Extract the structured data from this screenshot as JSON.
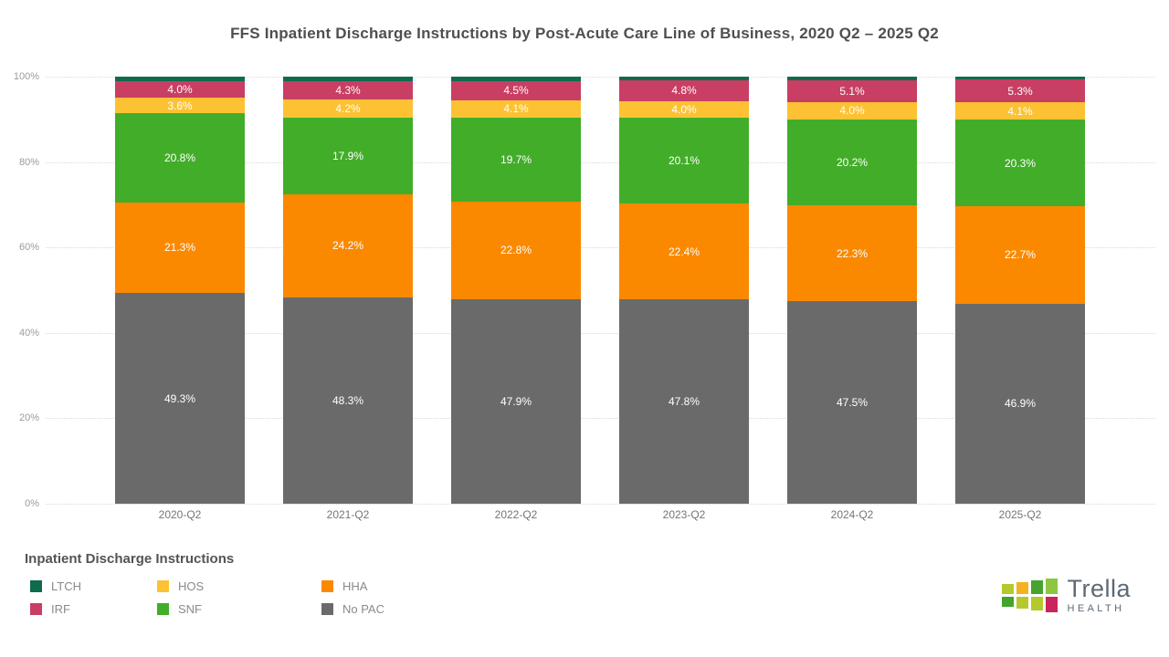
{
  "title": "FFS Inpatient Discharge Instructions by Post-Acute Care Line of Business, 2020 Q2 – 2025 Q2",
  "chart_data": {
    "type": "bar",
    "stacked": true,
    "orientation": "vertical",
    "title": "FFS Inpatient Discharge Instructions by Post-Acute Care Line of Business, 2020 Q2 – 2025 Q2",
    "categories": [
      "2020-Q2",
      "2021-Q2",
      "2022-Q2",
      "2023-Q2",
      "2024-Q2",
      "2025-Q2"
    ],
    "series": [
      {
        "name": "No PAC",
        "color": "#6a6a6a",
        "values": [
          49.3,
          48.3,
          47.9,
          47.8,
          47.5,
          46.9
        ],
        "data_labels": true
      },
      {
        "name": "HHA",
        "color": "#fb8900",
        "values": [
          21.3,
          24.2,
          22.8,
          22.4,
          22.3,
          22.7
        ],
        "data_labels": true
      },
      {
        "name": "SNF",
        "color": "#42ad29",
        "values": [
          20.8,
          17.9,
          19.7,
          20.1,
          20.2,
          20.3
        ],
        "data_labels": true
      },
      {
        "name": "HOS",
        "color": "#fcc233",
        "values": [
          3.6,
          4.2,
          4.1,
          4.0,
          4.0,
          4.1
        ],
        "data_labels": true
      },
      {
        "name": "IRF",
        "color": "#c83f63",
        "values": [
          4.0,
          4.3,
          4.5,
          4.8,
          5.1,
          5.3
        ],
        "data_labels": true
      },
      {
        "name": "LTCH",
        "color": "#0e6b4e",
        "values": [
          1.0,
          1.1,
          1.0,
          0.9,
          0.9,
          0.7
        ],
        "data_labels": false
      }
    ],
    "ylim": [
      0,
      100
    ],
    "y_ticks": [
      "0%",
      "20%",
      "40%",
      "60%",
      "80%",
      "100%"
    ],
    "grid": "dotted horizontal",
    "legend_position": "bottom-left",
    "value_suffix": "%"
  },
  "legend": {
    "title": "Inpatient Discharge Instructions",
    "items": [
      {
        "label": "LTCH",
        "color": "#0e6b4e"
      },
      {
        "label": "IRF",
        "color": "#c83f63"
      },
      {
        "label": "HOS",
        "color": "#fcc233"
      },
      {
        "label": "SNF",
        "color": "#42ad29"
      },
      {
        "label": "HHA",
        "color": "#fb8900"
      },
      {
        "label": "No PAC",
        "color": "#6a6a6a"
      }
    ]
  },
  "logo": {
    "brand": "Trella",
    "sub": "HEALTH",
    "square_colors": [
      [
        "#b5c92c",
        "#f2b31f",
        "#45a42e",
        "#8dc63f"
      ],
      [
        "#45a42e",
        "#b5c92c",
        "#b5c92c",
        "#c9245e"
      ]
    ]
  }
}
